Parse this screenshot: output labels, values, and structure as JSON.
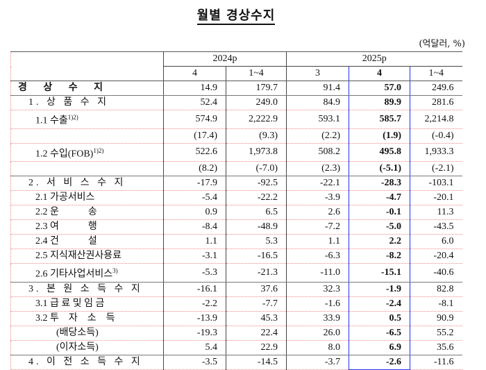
{
  "title": "월별 경상수지",
  "unit": "(억달러, %)",
  "header": {
    "year1": "2024p",
    "year2": "2025p",
    "months": [
      "4",
      "1~4",
      "3",
      "4",
      "1~4"
    ]
  },
  "highlight_color": "#2233ee",
  "rows": [
    {
      "label": "경 상 수 지",
      "level": 0,
      "values": [
        "14.9",
        "179.7",
        "91.4",
        "57.0",
        "249.6"
      ]
    },
    {
      "label": "1. 상 품 수 지",
      "level": 1,
      "values": [
        "52.4",
        "249.0",
        "84.9",
        "89.9",
        "281.6"
      ]
    },
    {
      "label": "1.1 수출",
      "sup": "1)2)",
      "level": 2,
      "values": [
        "574.9",
        "2,222.9",
        "593.1",
        "585.7",
        "2,214.8"
      ]
    },
    {
      "label": "",
      "level": 2,
      "values": [
        "(17.4)",
        "(9.3)",
        "(2.2)",
        "(1.9)",
        "(-0.4)"
      ]
    },
    {
      "label": "1.2 수입(FOB)",
      "sup": "1)2)",
      "level": 2,
      "values": [
        "522.6",
        "1,973.8",
        "508.2",
        "495.8",
        "1,933.3"
      ]
    },
    {
      "label": "",
      "level": 2,
      "values": [
        "(8.2)",
        "(-7.0)",
        "(2.3)",
        "(-5.1)",
        "(-2.1)"
      ]
    },
    {
      "label": "2. 서 비 스 수 지",
      "level": 1,
      "values": [
        "-17.9",
        "-92.5",
        "-22.1",
        "-28.3",
        "-103.1"
      ]
    },
    {
      "label": "2.1 가공서비스",
      "level": 2,
      "values": [
        "-5.4",
        "-22.2",
        "-3.9",
        "-4.7",
        "-20.1"
      ]
    },
    {
      "label": "2.2 운　　　송",
      "level": 2,
      "values": [
        "0.9",
        "6.5",
        "2.6",
        "-0.1",
        "11.3"
      ]
    },
    {
      "label": "2.3 여　　　행",
      "level": 2,
      "values": [
        "-8.4",
        "-48.9",
        "-7.2",
        "-5.0",
        "-43.5"
      ]
    },
    {
      "label": "2.4 건　　　설",
      "level": 2,
      "values": [
        "1.1",
        "5.3",
        "1.1",
        "2.2",
        "6.0"
      ]
    },
    {
      "label": "2.5 지식재산권사용료",
      "level": 2,
      "values": [
        "-3.1",
        "-16.5",
        "-6.3",
        "-8.2",
        "-20.4"
      ]
    },
    {
      "label": "2.6 기타사업서비스",
      "sup": "3)",
      "level": 2,
      "values": [
        "-5.3",
        "-21.3",
        "-11.0",
        "-15.1",
        "-40.6"
      ]
    },
    {
      "label": "3. 본 원 소 득 수 지",
      "level": 1,
      "values": [
        "-16.1",
        "37.6",
        "32.3",
        "-1.9",
        "82.8"
      ]
    },
    {
      "label": "3.1 급 료 및 임 금",
      "level": 2,
      "values": [
        "-2.2",
        "-7.7",
        "-1.6",
        "-2.4",
        "-8.1"
      ]
    },
    {
      "label": "3.2 투　자　소　득",
      "level": 2,
      "values": [
        "-13.9",
        "45.3",
        "33.9",
        "0.5",
        "90.9"
      ]
    },
    {
      "label": "(배당소득)",
      "level": 3,
      "values": [
        "-19.3",
        "22.4",
        "26.0",
        "-6.5",
        "55.2"
      ]
    },
    {
      "label": "(이자소득)",
      "level": 3,
      "values": [
        "5.4",
        "22.9",
        "8.0",
        "6.9",
        "35.6"
      ]
    },
    {
      "label": "4. 이 전 소 득 수 지",
      "level": 1,
      "values": [
        "-3.5",
        "-14.5",
        "-3.7",
        "-2.6",
        "-11.6"
      ]
    }
  ]
}
